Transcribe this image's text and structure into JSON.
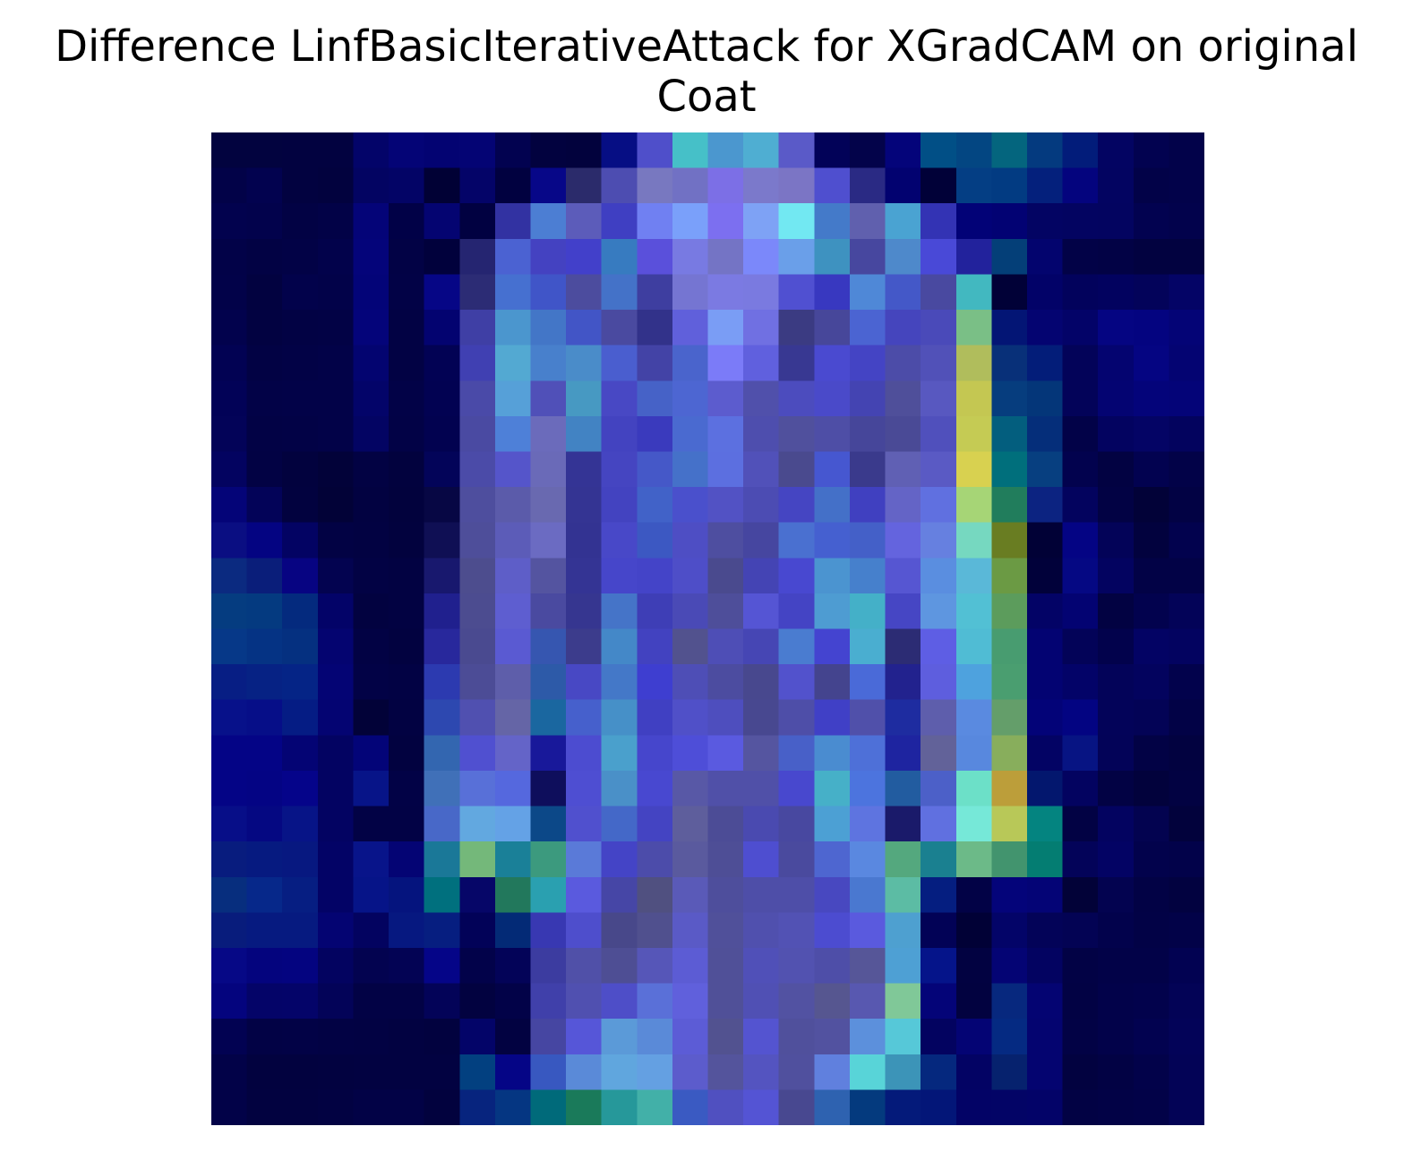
{
  "chart_data": {
    "type": "heatmap",
    "title_lines": [
      "Difference LinfBasicIterativeAttack for XGradCAM on original",
      "Coat"
    ],
    "rows": 28,
    "cols": 28,
    "axes": "off",
    "grid": false,
    "legend": "none",
    "cell_colors": [
      [
        "#02033f",
        "#02033f",
        "#020240",
        "#020240",
        "#030469",
        "#040476",
        "#030372",
        "#040474",
        "#020250",
        "#02023f",
        "#02023d",
        "#060e84",
        "#4f4fca",
        "#46c0c8",
        "#4b97cf",
        "#4faed2",
        "#5a5ac8",
        "#020258",
        "#03034a",
        "#04047a",
        "#014f86",
        "#034682",
        "#04657e",
        "#043a7f",
        "#021c7a",
        "#030462",
        "#020250",
        "#02024a"
      ],
      [
        "#020248",
        "#02024f",
        "#020240",
        "#02023e",
        "#030462",
        "#030466",
        "#010135",
        "#040468",
        "#010140",
        "#070788",
        "#2b2b6b",
        "#4d4db1",
        "#7878c0",
        "#7171c4",
        "#7c6fe6",
        "#7b79cb",
        "#7b75c5",
        "#4f4fcf",
        "#2a2a84",
        "#020270",
        "#010138",
        "#043e84",
        "#023b82",
        "#04207c",
        "#04047e",
        "#030461",
        "#020248",
        "#02024a"
      ],
      [
        "#02024e",
        "#02024c",
        "#020244",
        "#020247",
        "#040478",
        "#010147",
        "#040471",
        "#010141",
        "#3232a2",
        "#4c7ed3",
        "#5c5cba",
        "#3f3fc2",
        "#7080f2",
        "#7aa0fa",
        "#7c6ff0",
        "#7ea2f5",
        "#72e8f2",
        "#447ac9",
        "#6060ae",
        "#4aa3d2",
        "#3333b4",
        "#020277",
        "#020273",
        "#030463",
        "#030461",
        "#030460",
        "#020250",
        "#02024c"
      ],
      [
        "#020248",
        "#020244",
        "#020246",
        "#02024b",
        "#04047a",
        "#020245",
        "#01013c",
        "#252571",
        "#4b62d2",
        "#4442c1",
        "#4240ca",
        "#377bc0",
        "#5a50db",
        "#787ae2",
        "#7474c5",
        "#7b88fa",
        "#6a9fe9",
        "#3e92c0",
        "#47479f",
        "#4e89cb",
        "#4949d7",
        "#22229c",
        "#043f78",
        "#03046e",
        "#020247",
        "#020245",
        "#020240",
        "#020240"
      ],
      [
        "#020249",
        "#020240",
        "#02024b",
        "#020249",
        "#030478",
        "#020246",
        "#060686",
        "#2c2c75",
        "#4670d0",
        "#4055c8",
        "#4c4c9e",
        "#4472c8",
        "#3e3ea0",
        "#7575d2",
        "#7b7ae2",
        "#7a7ae0",
        "#5050d1",
        "#3838c0",
        "#4f88d7",
        "#4458c8",
        "#4949a0",
        "#42b8c0",
        "#010137",
        "#020268",
        "#02025c",
        "#02025f",
        "#03035a",
        "#040466"
      ],
      [
        "#02024d",
        "#020241",
        "#020244",
        "#020245",
        "#04047a",
        "#020244",
        "#030370",
        "#3f3fa5",
        "#4b96ce",
        "#4376c7",
        "#4255c6",
        "#4a4aa0",
        "#32328a",
        "#6060db",
        "#7a9df5",
        "#7070e2",
        "#3b3b82",
        "#47479a",
        "#4b64d2",
        "#4545bd",
        "#4a4ab9",
        "#7abf86",
        "#031575",
        "#040471",
        "#030368",
        "#050582",
        "#040480",
        "#040476"
      ],
      [
        "#020253",
        "#020244",
        "#020246",
        "#020248",
        "#030470",
        "#020244",
        "#020254",
        "#4040b2",
        "#53a9d2",
        "#4880cc",
        "#4a8cc9",
        "#4a5ecf",
        "#4343a6",
        "#4a64cc",
        "#7b7bf8",
        "#6060de",
        "#383892",
        "#4a4ad0",
        "#4444c4",
        "#4c4ca8",
        "#5151b8",
        "#b0bd5c",
        "#083079",
        "#031d79",
        "#030359",
        "#040470",
        "#050582",
        "#040472"
      ],
      [
        "#020257",
        "#020247",
        "#020248",
        "#020248",
        "#030469",
        "#020247",
        "#020252",
        "#4a4aa8",
        "#56a0d8",
        "#5050b8",
        "#4799c2",
        "#4848c4",
        "#4662c7",
        "#4d66d2",
        "#5c5cce",
        "#5050ab",
        "#4c4cbe",
        "#4a4ac9",
        "#4444b2",
        "#4f4f9a",
        "#5858c0",
        "#c4c752",
        "#063d7e",
        "#043679",
        "#030359",
        "#040472",
        "#04047a",
        "#040478"
      ],
      [
        "#030358",
        "#020245",
        "#020246",
        "#020248",
        "#030463",
        "#020246",
        "#020250",
        "#4a4aa2",
        "#4e80d8",
        "#6b6bbb",
        "#4283c3",
        "#4343c0",
        "#3a3abd",
        "#4a6ad0",
        "#5c70e0",
        "#4e4eae",
        "#50509d",
        "#4e4ea6",
        "#46469a",
        "#4a4a96",
        "#5050bc",
        "#c5cb54",
        "#035e7e",
        "#052e7a",
        "#020248",
        "#030360",
        "#040465",
        "#03035e"
      ],
      [
        "#030360",
        "#020244",
        "#02023e",
        "#020239",
        "#020243",
        "#02023e",
        "#030459",
        "#4b4ba8",
        "#5555ca",
        "#6a6ab8",
        "#343495",
        "#4545c1",
        "#4558c8",
        "#4571c9",
        "#5c6fe0",
        "#5151b9",
        "#4a4a8e",
        "#4657d0",
        "#3a3a8c",
        "#6060b4",
        "#5a5ac4",
        "#d8d150",
        "#006f7c",
        "#073f80",
        "#02024e",
        "#020242",
        "#020250",
        "#020248"
      ],
      [
        "#040478",
        "#030358",
        "#02023f",
        "#020237",
        "#020241",
        "#02023d",
        "#070744",
        "#4e4e9e",
        "#5b5baa",
        "#6969b0",
        "#343493",
        "#4343c0",
        "#4162c8",
        "#4a50cc",
        "#5252c4",
        "#4c4cb3",
        "#4545c2",
        "#4470c8",
        "#4040c0",
        "#6464c6",
        "#6070e0",
        "#a6d576",
        "#217d5c",
        "#0c2381",
        "#03035e",
        "#020244",
        "#020238",
        "#020244"
      ],
      [
        "#0a0e82",
        "#040482",
        "#030363",
        "#020244",
        "#020242",
        "#02023e",
        "#0f0f54",
        "#4e4e9a",
        "#5c5cb8",
        "#6b6bc2",
        "#333392",
        "#4848c8",
        "#3c58c2",
        "#4e4ec4",
        "#4e4ea0",
        "#4646a0",
        "#4a70d0",
        "#4560d0",
        "#4460c8",
        "#6464de",
        "#6680e0",
        "#76d8c0",
        "#697d22",
        "#010136",
        "#040484",
        "#030358",
        "#02023e",
        "#02024e"
      ],
      [
        "#0b2a80",
        "#0a1e7a",
        "#070482",
        "#030350",
        "#020244",
        "#020242",
        "#18186e",
        "#4d4d8e",
        "#5e5ec8",
        "#5454a0",
        "#343494",
        "#4646ca",
        "#4444c8",
        "#4e4ec8",
        "#4a4a8e",
        "#4444b4",
        "#4848d0",
        "#4b94d0",
        "#4680cc",
        "#5656d2",
        "#5a8ee0",
        "#5ab8d8",
        "#6b9a44",
        "#01013a",
        "#050883",
        "#030360",
        "#020246",
        "#020246"
      ],
      [
        "#053c80",
        "#043a80",
        "#042a7e",
        "#030368",
        "#020240",
        "#020242",
        "#20208e",
        "#4c4c90",
        "#5e5ed0",
        "#4a4aa0",
        "#363690",
        "#4574c8",
        "#3e3eb6",
        "#4a4ab6",
        "#4e4e9a",
        "#5555d4",
        "#4444c4",
        "#4e9cd2",
        "#44b0c8",
        "#4646c4",
        "#5e96e0",
        "#52c0d4",
        "#5c9c5c",
        "#030366",
        "#030372",
        "#020242",
        "#02024e",
        "#030358"
      ],
      [
        "#063888",
        "#053384",
        "#053080",
        "#040470",
        "#020244",
        "#020240",
        "#28289c",
        "#4a4a90",
        "#5a5ad2",
        "#3656b0",
        "#3c3c8c",
        "#4488c8",
        "#4242c0",
        "#52528e",
        "#4e4eb6",
        "#4646b4",
        "#4a7cd0",
        "#4444d0",
        "#4aaed0",
        "#2c2c74",
        "#5e5ee4",
        "#50bcd4",
        "#489c70",
        "#030372",
        "#030358",
        "#02024c",
        "#030364",
        "#030360"
      ],
      [
        "#071e84",
        "#062284",
        "#052486",
        "#040474",
        "#020246",
        "#020244",
        "#2c3ab0",
        "#4c4c96",
        "#5e5eaa",
        "#2d5aa8",
        "#4848c4",
        "#4478c8",
        "#3e3ed0",
        "#4e4eb6",
        "#4c4ca0",
        "#48488e",
        "#5252cc",
        "#44448e",
        "#4a6ad8",
        "#22228e",
        "#5e5ede",
        "#4ea2de",
        "#4a9e70",
        "#030372",
        "#030368",
        "#030359",
        "#03035e",
        "#02024c"
      ],
      [
        "#07118a",
        "#060e88",
        "#051c84",
        "#040472",
        "#020238",
        "#020242",
        "#2d48b0",
        "#5050b0",
        "#6565a6",
        "#1a67a0",
        "#4660cc",
        "#4690c8",
        "#4040c2",
        "#5050c8",
        "#4e4ebe",
        "#484890",
        "#4e4ea8",
        "#4040c6",
        "#5050aa",
        "#1e2ca0",
        "#5e5eac",
        "#5a8ae0",
        "#649e6a",
        "#030378",
        "#030482",
        "#030359",
        "#030356",
        "#020246"
      ],
      [
        "#040486",
        "#040486",
        "#040474",
        "#030362",
        "#030478",
        "#020240",
        "#3366b0",
        "#5050d0",
        "#6464c8",
        "#18189a",
        "#4c4cd0",
        "#4aa0cc",
        "#4646cc",
        "#4e4ed8",
        "#5a5ae0",
        "#5555a0",
        "#4860c8",
        "#4a8cd0",
        "#4e70d8",
        "#1e24a0",
        "#626299",
        "#5888de",
        "#88ae5c",
        "#030364",
        "#071483",
        "#030358",
        "#020245",
        "#020240"
      ],
      [
        "#040486",
        "#040484",
        "#05048a",
        "#030362",
        "#071488",
        "#020246",
        "#4070b8",
        "#5870d8",
        "#5568de",
        "#0e0e5c",
        "#4e4ed2",
        "#4a90c8",
        "#4848d0",
        "#5858a6",
        "#5050a8",
        "#5050a8",
        "#4848ce",
        "#46b0c8",
        "#4c74de",
        "#225ca0",
        "#4c60c8",
        "#6ce0c8",
        "#bc9e3a",
        "#03176e",
        "#030360",
        "#020244",
        "#02023c",
        "#020242"
      ],
      [
        "#070e88",
        "#050882",
        "#071487",
        "#030362",
        "#020245",
        "#020245",
        "#4868c8",
        "#62a8e0",
        "#64a2e6",
        "#0c4888",
        "#5050ce",
        "#4468c8",
        "#4444c2",
        "#5e5e9c",
        "#4c4c96",
        "#4a4ab0",
        "#4848a0",
        "#4ca0d4",
        "#5e74e0",
        "#1a1a6a",
        "#6070e0",
        "#76e8d8",
        "#b8c858",
        "#048480",
        "#020244",
        "#030360",
        "#030350",
        "#02023c"
      ],
      [
        "#081c7e",
        "#061a80",
        "#071880",
        "#030366",
        "#08148a",
        "#040474",
        "#1a7898",
        "#74b87a",
        "#1a8098",
        "#3c9a7e",
        "#5a7ad8",
        "#4444c6",
        "#4c4caa",
        "#5a5a9e",
        "#4e4e96",
        "#4e4ed0",
        "#4a4a9e",
        "#4e66d0",
        "#5a88e0",
        "#54a87e",
        "#1a8090",
        "#6cba88",
        "#42946e",
        "#047d72",
        "#030359",
        "#030364",
        "#02024c",
        "#02024a"
      ],
      [
        "#072e7e",
        "#06288a",
        "#061e82",
        "#030366",
        "#061488",
        "#05147e",
        "#00707e",
        "#060668",
        "#22785c",
        "#2aa0b0",
        "#5a5ade",
        "#4646a6",
        "#505080",
        "#5a5ab8",
        "#4e4e9c",
        "#4e4ea8",
        "#4e4ea8",
        "#4848c0",
        "#4a78d0",
        "#5cbca4",
        "#051e80",
        "#020246",
        "#04047a",
        "#040476",
        "#020238",
        "#030350",
        "#020245",
        "#020240"
      ],
      [
        "#081c7c",
        "#061a80",
        "#061a80",
        "#040472",
        "#030360",
        "#061880",
        "#061e80",
        "#020258",
        "#032a76",
        "#3838b2",
        "#4e4ecc",
        "#48488a",
        "#50508e",
        "#5a5ac6",
        "#50509a",
        "#5050ae",
        "#5252b4",
        "#4c4cd0",
        "#5a5ade",
        "#4ea0d0",
        "#020256",
        "#010136",
        "#030468",
        "#030358",
        "#030354",
        "#02024c",
        "#020246",
        "#020248"
      ],
      [
        "#060886",
        "#04047e",
        "#040480",
        "#030360",
        "#030350",
        "#030354",
        "#050588",
        "#02024a",
        "#030358",
        "#3c3ca0",
        "#5050a8",
        "#4e4e94",
        "#5656b8",
        "#5c5cd4",
        "#505098",
        "#5050b8",
        "#5252b0",
        "#4e4ea8",
        "#565698",
        "#4ea0d4",
        "#05148a",
        "#020241",
        "#040474",
        "#030361",
        "#020245",
        "#020248",
        "#020248",
        "#020252"
      ],
      [
        "#04047e",
        "#040468",
        "#040469",
        "#030358",
        "#020245",
        "#020245",
        "#030358",
        "#020240",
        "#020248",
        "#4040aa",
        "#5050b0",
        "#4e4ec8",
        "#5a70d8",
        "#6060dc",
        "#505098",
        "#5050b4",
        "#5252a2",
        "#565690",
        "#5858b0",
        "#80c898",
        "#040478",
        "#020240",
        "#07287e",
        "#040472",
        "#020244",
        "#02024a",
        "#02024c",
        "#030356"
      ],
      [
        "#020252",
        "#020245",
        "#020246",
        "#020244",
        "#020243",
        "#020241",
        "#02023f",
        "#030468",
        "#020241",
        "#4646a2",
        "#5656d8",
        "#5b9ad8",
        "#5a8ad8",
        "#5c5cd6",
        "#525290",
        "#5454d0",
        "#50509c",
        "#5252a0",
        "#5c90dc",
        "#56c8d8",
        "#030360",
        "#040474",
        "#052a82",
        "#040470",
        "#020245",
        "#02024a",
        "#020250",
        "#030358"
      ],
      [
        "#020248",
        "#02023f",
        "#02023f",
        "#020240",
        "#020241",
        "#020241",
        "#020241",
        "#024080",
        "#050586",
        "#3858c0",
        "#5a8ad8",
        "#60a6de",
        "#64a0e2",
        "#5c5ccc",
        "#54549c",
        "#5454c0",
        "#50509e",
        "#6080de",
        "#58d4d8",
        "#3c94b8",
        "#05287e",
        "#030364",
        "#06226e",
        "#040470",
        "#020240",
        "#020244",
        "#02024a",
        "#030356"
      ],
      [
        "#020248",
        "#020240",
        "#020240",
        "#020242",
        "#020246",
        "#020246",
        "#02023e",
        "#07247e",
        "#053682",
        "#006a7a",
        "#1a7a5a",
        "#26989a",
        "#42b0a8",
        "#3a5ac2",
        "#5050c0",
        "#5454d4",
        "#484890",
        "#2e62b0",
        "#043a7e",
        "#041a7a",
        "#031678",
        "#030366",
        "#030466",
        "#030368",
        "#020244",
        "#020246",
        "#020248",
        "#030356"
      ]
    ]
  }
}
